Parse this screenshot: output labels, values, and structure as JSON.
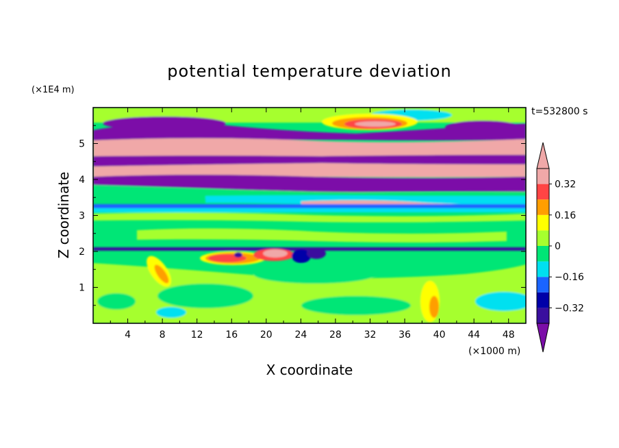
{
  "chart_data": {
    "type": "heatmap",
    "title": "potential temperature deviation",
    "time_label": "t=532800 s",
    "xlabel": "X coordinate",
    "ylabel": "Z coordinate",
    "x_unit": "(×1000 m)",
    "y_unit": "(×1E4 m)",
    "xlim": [
      0,
      50
    ],
    "ylim": [
      0,
      6
    ],
    "x_ticks": [
      4,
      8,
      12,
      16,
      20,
      24,
      28,
      32,
      36,
      40,
      44,
      48
    ],
    "y_ticks": [
      1,
      2,
      3,
      4,
      5
    ],
    "colorbar": {
      "levels": [
        -0.4,
        -0.32,
        -0.24,
        -0.16,
        -0.08,
        0,
        0.08,
        0.16,
        0.24,
        0.32,
        0.4
      ],
      "tick_values": [
        0.32,
        0.16,
        0,
        -0.16,
        -0.32
      ],
      "tick_labels": [
        "0.32",
        "0.16",
        "0",
        "−0.16",
        "−0.32"
      ],
      "colors_bottom_to_top": [
        "#7b0ea8",
        "#3a0f9e",
        "#0000a8",
        "#1a64ff",
        "#00e0f0",
        "#00e676",
        "#a6ff2e",
        "#ffff00",
        "#ff9e00",
        "#ff4444",
        "#f0a8a8"
      ],
      "extend": "both"
    },
    "fields": [
      {
        "value": "background",
        "color": "#00e676"
      },
      {
        "band_z": [
          5.3,
          5.75
        ],
        "color": "#7b0ea8"
      },
      {
        "band_z": [
          4.8,
          5.3
        ],
        "color": "#f0a8a8"
      },
      {
        "band_z": [
          4.5,
          4.8
        ],
        "color": "#7b0ea8"
      },
      {
        "band_z": [
          4.3,
          4.5
        ],
        "color": "#f0a8a8"
      },
      {
        "band_z": [
          3.95,
          4.3
        ],
        "color": "#7b0ea8"
      },
      {
        "band_z": [
          3.25,
          3.35
        ],
        "color": "#1a64ff"
      },
      {
        "band_z": [
          2.0,
          2.1
        ],
        "color": "#3a0f9e"
      }
    ]
  }
}
